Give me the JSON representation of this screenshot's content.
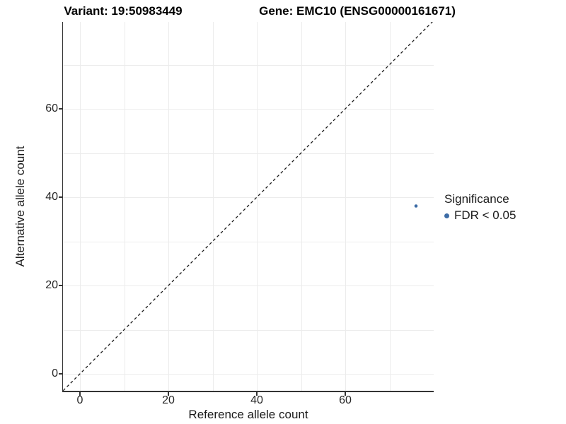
{
  "chart_data": {
    "type": "scatter",
    "titles": {
      "left": "Variant: 19:50983449",
      "right": "Gene: EMC10 (ENSG00000161671)"
    },
    "xlabel": "Reference allele count",
    "ylabel": "Alternative allele count",
    "xlim": [
      -3.8,
      80
    ],
    "ylim": [
      -3.8,
      79.7
    ],
    "x_ticks": [
      0,
      20,
      40,
      60
    ],
    "y_ticks": [
      0,
      20,
      40,
      60
    ],
    "grid": {
      "on": true,
      "interval": 10,
      "color": "#ececec"
    },
    "axis_color": "#333333",
    "tick_label_color": "#262626",
    "identity_line": {
      "equation": "y = x",
      "style": "dashed",
      "color": "#1a1a1a"
    },
    "series": [
      {
        "name": "FDR < 0.05",
        "color": "#3d6ca6",
        "points": [
          {
            "x": 76,
            "y": 38
          }
        ]
      }
    ],
    "legend": {
      "title": "Significance",
      "position": "right",
      "items": [
        {
          "label": "FDR < 0.05",
          "color": "#3d6ca6"
        }
      ]
    }
  }
}
